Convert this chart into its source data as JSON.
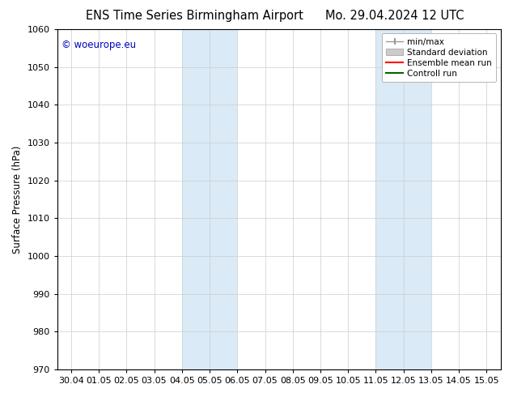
{
  "title_left": "ENS Time Series Birmingham Airport",
  "title_right": "Mo. 29.04.2024 12 UTC",
  "ylabel": "Surface Pressure (hPa)",
  "ylim": [
    970,
    1060
  ],
  "yticks": [
    970,
    980,
    990,
    1000,
    1010,
    1020,
    1030,
    1040,
    1050,
    1060
  ],
  "xtick_labels": [
    "30.04",
    "01.05",
    "02.05",
    "03.05",
    "04.05",
    "05.05",
    "06.05",
    "07.05",
    "08.05",
    "09.05",
    "10.05",
    "11.05",
    "12.05",
    "13.05",
    "14.05",
    "15.05"
  ],
  "shaded_regions": [
    {
      "xstart": 4,
      "xend": 6,
      "color": "#daeaf6"
    },
    {
      "xstart": 11,
      "xend": 13,
      "color": "#daeaf6"
    }
  ],
  "watermark": "© woeurope.eu",
  "watermark_color": "#0000bb",
  "background_color": "#ffffff",
  "plot_bg_color": "#ffffff",
  "grid_color": "#cccccc",
  "legend_items": [
    {
      "label": "min/max",
      "color": "#aaaaaa"
    },
    {
      "label": "Standard deviation",
      "color": "#cccccc"
    },
    {
      "label": "Ensemble mean run",
      "color": "#ff0000"
    },
    {
      "label": "Controll run",
      "color": "#006600"
    }
  ],
  "title_fontsize": 10.5,
  "tick_fontsize": 8,
  "ylabel_fontsize": 8.5,
  "legend_fontsize": 7.5
}
